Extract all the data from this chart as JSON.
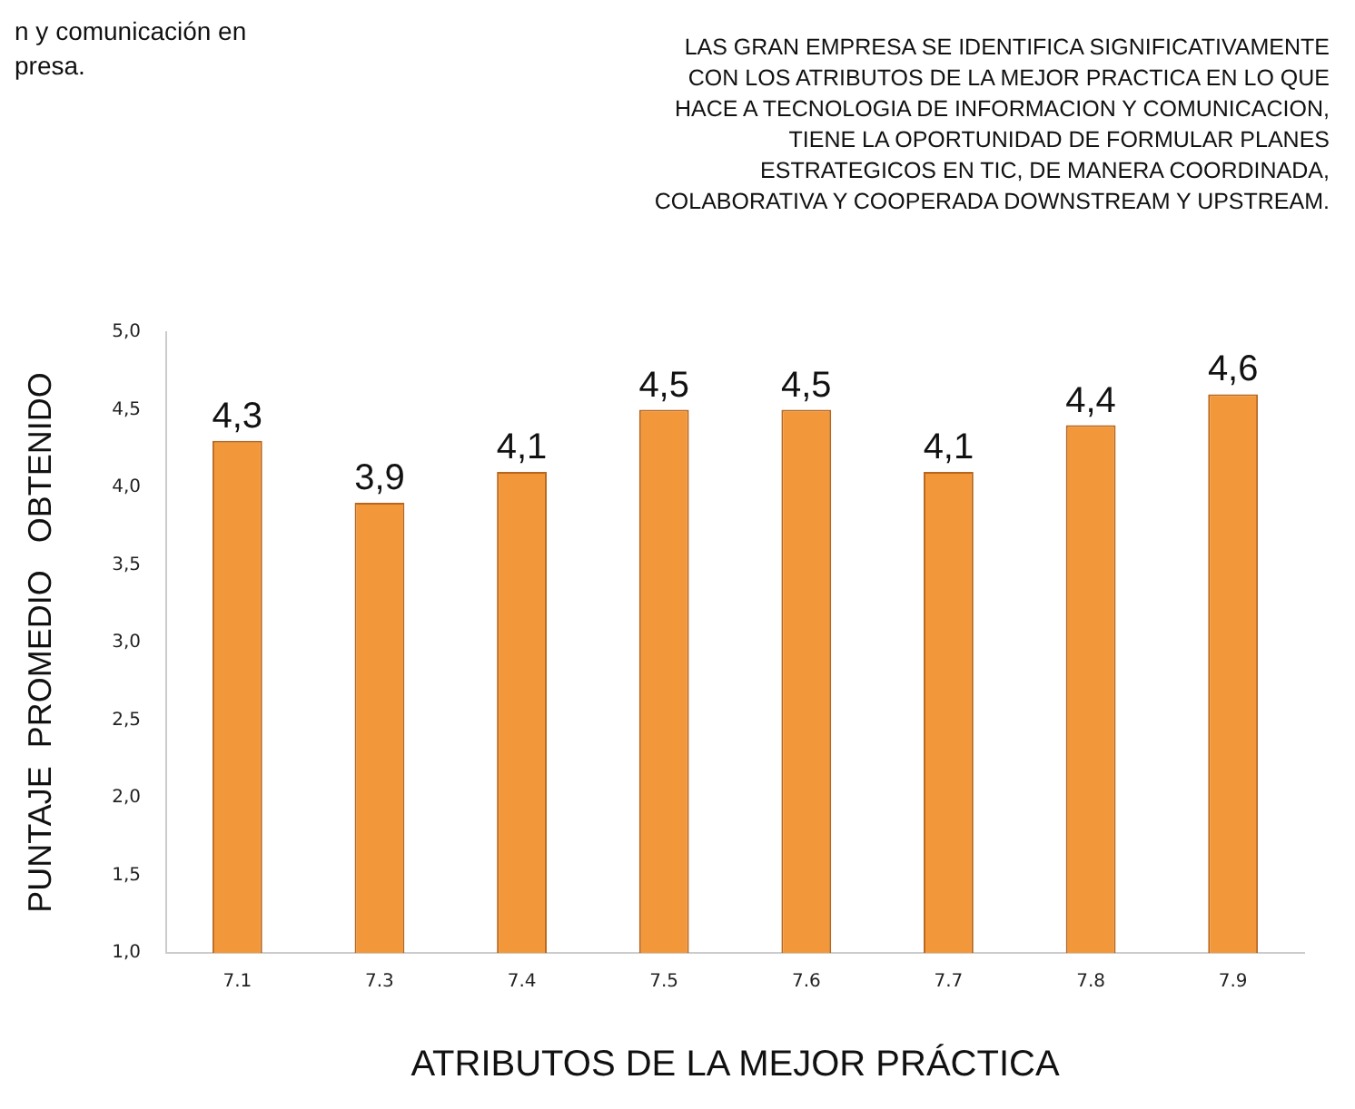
{
  "chart_data": {
    "type": "bar",
    "xlabel": "ATRIBUTOS DE LA MEJOR PRÁCTICA",
    "ylabel": "PUNTAJE  PROMEDIO   OBTENIDO",
    "annotations": [
      "n y comunicación en\npresa.",
      "LAS GRAN EMPRESA SE IDENTIFICA SIGNIFICATIVAMENTE\nCON LOS ATRIBUTOS DE LA MEJOR PRACTICA EN LO QUE\nHACE A TECNOLOGIA DE INFORMACION Y COMUNICACION,\nTIENE LA OPORTUNIDAD DE FORMULAR PLANES\nESTRATEGICOS EN TIC,  DE MANERA COORDINADA,\nCOLABORATIVA Y COOPERADA DOWNSTREAM Y UPSTREAM."
    ],
    "categories": [
      "7.1",
      "7.3",
      "7.4",
      "7.5",
      "7.6",
      "7.7",
      "7.8",
      "7.9"
    ],
    "values": [
      4.3,
      3.9,
      4.1,
      4.5,
      4.5,
      4.1,
      4.4,
      4.6
    ],
    "value_labels": [
      "4,3",
      "3,9",
      "4,1",
      "4,5",
      "4,5",
      "4,1",
      "4,4",
      "4,6"
    ],
    "color": "#f3983a",
    "ylim": [
      1,
      5
    ],
    "yticks": [
      {
        "value": 1,
        "label": "1,0"
      },
      {
        "value": 1.5,
        "label": "1,5"
      },
      {
        "value": 2,
        "label": "2,0"
      },
      {
        "value": 2.5,
        "label": "2,5"
      },
      {
        "value": 3,
        "label": "3,0"
      },
      {
        "value": 3.5,
        "label": "3,5"
      },
      {
        "value": 4,
        "label": "4,0"
      },
      {
        "value": 4.5,
        "label": "4,5"
      },
      {
        "value": 5,
        "label": "5,0"
      }
    ],
    "grid": false,
    "legend": false
  }
}
